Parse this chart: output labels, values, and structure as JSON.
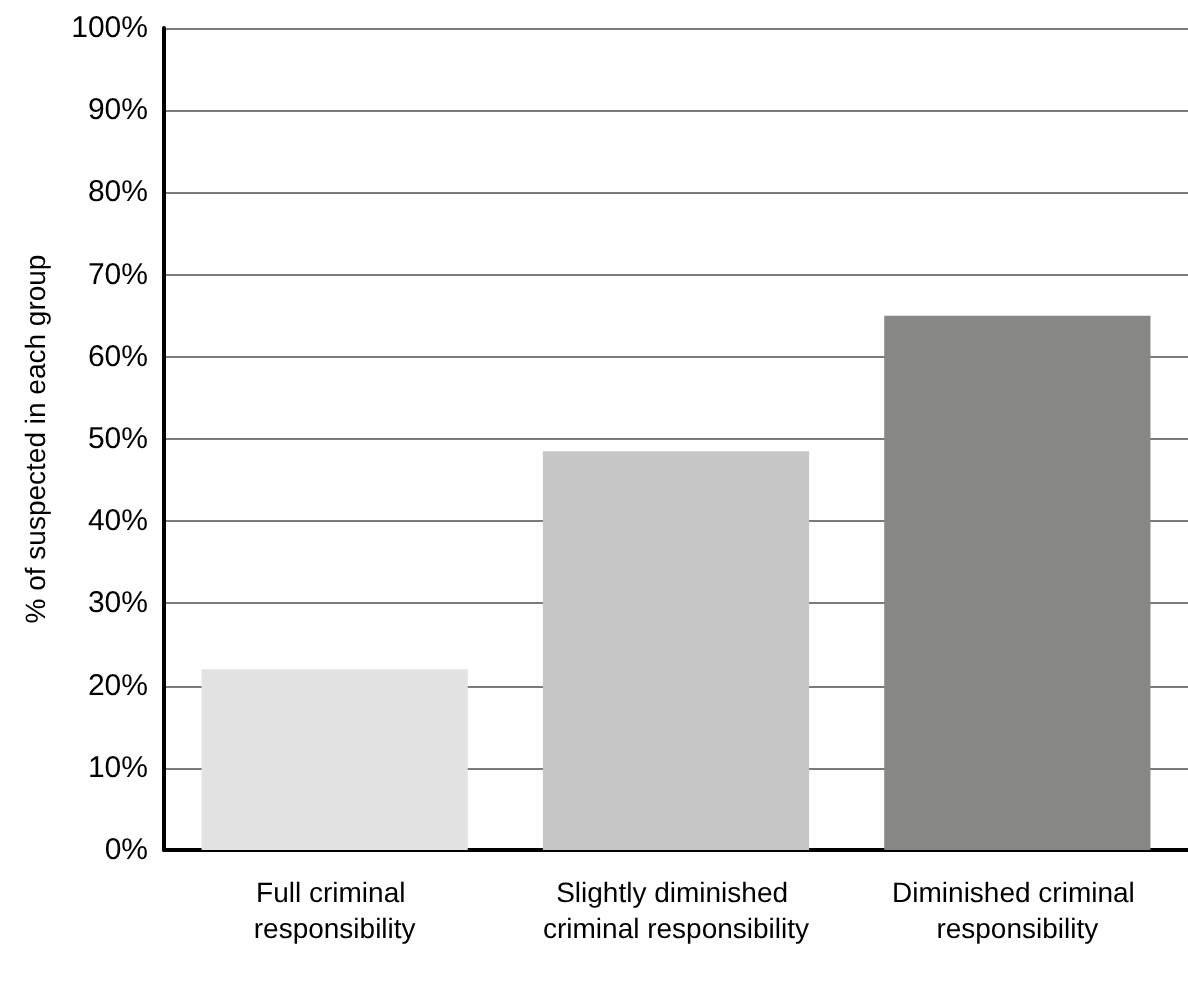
{
  "chart_data": {
    "type": "bar",
    "ylabel": "% of suspected in each group",
    "categories": [
      "Full criminal responsibility",
      "Slightly diminished criminal responsibility",
      "Diminished criminal responsibility"
    ],
    "values": [
      22,
      48.5,
      65
    ],
    "colors": [
      "#e2e2e2",
      "#c5c6c5",
      "#878786"
    ],
    "ylim": [
      0,
      100
    ],
    "yticks": [
      {
        "value": 0,
        "label": "0%"
      },
      {
        "value": 10,
        "label": "10%"
      },
      {
        "value": 20,
        "label": "20%"
      },
      {
        "value": 30,
        "label": "30%"
      },
      {
        "value": 40,
        "label": "40%"
      },
      {
        "value": 50,
        "label": "50%"
      },
      {
        "value": 60,
        "label": "60%"
      },
      {
        "value": 70,
        "label": "70%"
      },
      {
        "value": 80,
        "label": "80%"
      },
      {
        "value": 90,
        "label": "90%"
      },
      {
        "value": 100,
        "label": "100%"
      }
    ],
    "grid": "y"
  }
}
